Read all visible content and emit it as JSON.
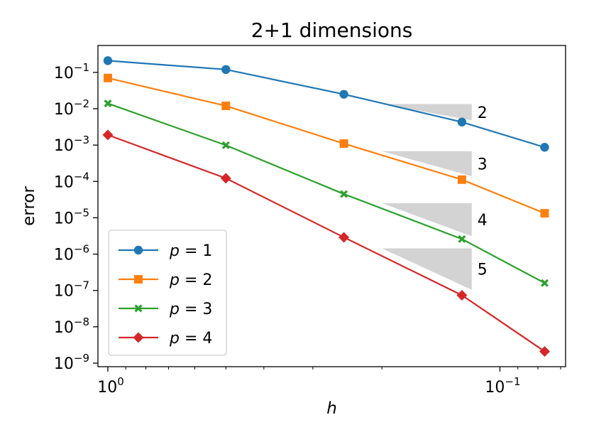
{
  "chart_data": {
    "type": "line",
    "title": "2+1 dimensions",
    "xlabel": "h",
    "ylabel": "error",
    "x_scale": "log",
    "y_scale": "log",
    "x_inverted": true,
    "xlim": [
      1.06,
      0.068
    ],
    "ylim": [
      8e-10,
      0.55
    ],
    "grid": false,
    "legend_placement": "lower-left",
    "x_ticks": [
      {
        "value": 1.0,
        "base": "10",
        "exp": "0"
      },
      {
        "value": 0.1,
        "base": "10",
        "exp": "−1"
      }
    ],
    "y_ticks": [
      {
        "value": 0.1,
        "base": "10",
        "exp": "−1"
      },
      {
        "value": 0.01,
        "base": "10",
        "exp": "−2"
      },
      {
        "value": 0.001,
        "base": "10",
        "exp": "−3"
      },
      {
        "value": 0.0001,
        "base": "10",
        "exp": "−4"
      },
      {
        "value": 1e-05,
        "base": "10",
        "exp": "−5"
      },
      {
        "value": 1e-06,
        "base": "10",
        "exp": "−6"
      },
      {
        "value": 1e-07,
        "base": "10",
        "exp": "−7"
      },
      {
        "value": 1e-08,
        "base": "10",
        "exp": "−8"
      },
      {
        "value": 1e-09,
        "base": "10",
        "exp": "−9"
      }
    ],
    "x": [
      1.0,
      0.5,
      0.25,
      0.125,
      0.0769
    ],
    "series": [
      {
        "name_var": "p",
        "name_val": "1",
        "color": "#1f77b4",
        "marker": "circle",
        "values": [
          0.21,
          0.12,
          0.025,
          0.0043,
          0.00087
        ]
      },
      {
        "name_var": "p",
        "name_val": "2",
        "color": "#ff7f0e",
        "marker": "square",
        "values": [
          0.07,
          0.012,
          0.0011,
          0.000112,
          1.33e-05
        ]
      },
      {
        "name_var": "p",
        "name_val": "3",
        "color": "#2ca02c",
        "marker": "x",
        "values": [
          0.014,
          0.00099,
          4.5e-05,
          2.6e-06,
          1.6e-07
        ]
      },
      {
        "name_var": "p",
        "name_val": "4",
        "color": "#d62728",
        "marker": "diamond",
        "values": [
          0.0019,
          0.000122,
          2.9e-06,
          7.4e-08,
          2.1e-09
        ]
      }
    ],
    "slope_triangles": [
      {
        "label": "2",
        "x_left": 0.2,
        "x_right": 0.118,
        "y_top": 0.0135,
        "y_bottom": 0.0048
      },
      {
        "label": "3",
        "x_left": 0.2,
        "x_right": 0.118,
        "y_top": 0.00068,
        "y_bottom": 0.000139
      },
      {
        "label": "4",
        "x_left": 0.2,
        "x_right": 0.118,
        "y_top": 2.53e-05,
        "y_bottom": 3.09e-06
      },
      {
        "label": "5",
        "x_left": 0.2,
        "x_right": 0.118,
        "y_top": 1.44e-06,
        "y_bottom": 1.04e-07
      }
    ],
    "triangle_color": "#d3d3d3"
  }
}
